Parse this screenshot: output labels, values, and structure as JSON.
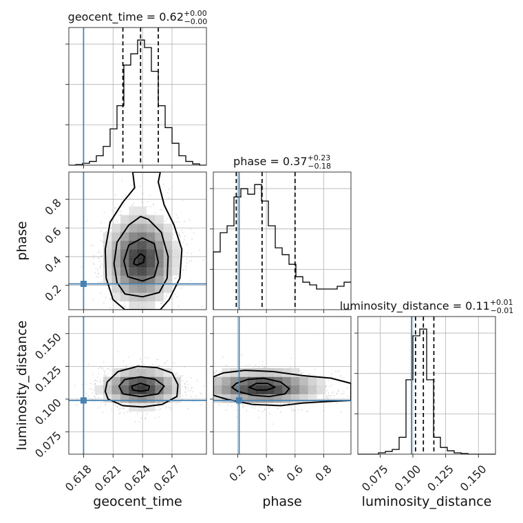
{
  "chart_data": {
    "type": "corner",
    "parameters": [
      "geocent_time",
      "phase",
      "luminosity_distance"
    ],
    "truths": {
      "geocent_time": 0.618,
      "phase": 0.21,
      "luminosity_distance": 0.099
    },
    "axes": {
      "geocent_time": {
        "label": "geocent_time",
        "range": [
          0.6165,
          0.6305
        ],
        "ticks": [
          0.618,
          0.621,
          0.624,
          0.627
        ],
        "tick_labels": [
          "0.618",
          "0.621",
          "0.624",
          "0.627"
        ]
      },
      "phase": {
        "label": "phase",
        "range": [
          0.03,
          0.99
        ],
        "ticks": [
          0.2,
          0.4,
          0.6,
          0.8
        ],
        "tick_labels": [
          "0.2",
          "0.4",
          "0.6",
          "0.8"
        ]
      },
      "luminosity_distance": {
        "label": "luminosity_distance",
        "range": [
          0.058,
          0.163
        ],
        "ticks": [
          0.075,
          0.1,
          0.125,
          0.15
        ],
        "tick_labels": [
          "0.075",
          "0.100",
          "0.125",
          "0.150"
        ]
      }
    },
    "titles": [
      {
        "param": "geocent_time",
        "prefix": "geocent_time = 0.62",
        "sup": "+0.00",
        "sub": "−0.00"
      },
      {
        "param": "phase",
        "prefix": "phase = 0.37",
        "sup": "+0.23",
        "sub": "−0.18"
      },
      {
        "param": "luminosity_distance",
        "prefix": "luminosity_distance = 0.11",
        "sup": "+0.01",
        "sub": "−0.01"
      }
    ],
    "histograms": {
      "geocent_time": {
        "edges_start": 0.6165,
        "bin_width": 0.0007,
        "counts": [
          0,
          1,
          3,
          6,
          15,
          30,
          58,
          95,
          160,
          178,
          200,
          188,
          150,
          95,
          60,
          35,
          15,
          6,
          2,
          0
        ],
        "quantiles": [
          0.622,
          0.6238,
          0.6256
        ]
      },
      "phase": {
        "edges_start": 0.03,
        "bin_width": 0.048,
        "counts": [
          42,
          56,
          61,
          82,
          88,
          84,
          91,
          79,
          61,
          45,
          40,
          33,
          24,
          20,
          18,
          15,
          15,
          15,
          17,
          20
        ],
        "quantiles": [
          0.19,
          0.37,
          0.6
        ]
      },
      "luminosity_distance": {
        "edges_start": 0.058,
        "bin_width": 0.00525,
        "counts": [
          0,
          0,
          0,
          2,
          4,
          7,
          25,
          110,
          175,
          185,
          110,
          25,
          10,
          5,
          2,
          1,
          0,
          0,
          0,
          0
        ],
        "quantiles": [
          0.102,
          0.108,
          0.116
        ]
      }
    },
    "contours_2d": [
      {
        "x": "geocent_time",
        "y": "phase",
        "levels": [
          [
            [
              0.6234,
              0.34
            ],
            [
              0.6241,
              0.36
            ],
            [
              0.6242,
              0.4
            ],
            [
              0.6238,
              0.42
            ],
            [
              0.6232,
              0.38
            ],
            [
              0.6231,
              0.35
            ]
          ],
          [
            [
              0.6225,
              0.26
            ],
            [
              0.624,
              0.23
            ],
            [
              0.6252,
              0.26
            ],
            [
              0.6256,
              0.36
            ],
            [
              0.6252,
              0.49
            ],
            [
              0.624,
              0.53
            ],
            [
              0.6226,
              0.48
            ],
            [
              0.6221,
              0.37
            ]
          ],
          [
            [
              0.6222,
              0.14
            ],
            [
              0.624,
              0.12
            ],
            [
              0.6257,
              0.15
            ],
            [
              0.6265,
              0.25
            ],
            [
              0.6266,
              0.4
            ],
            [
              0.6259,
              0.57
            ],
            [
              0.6246,
              0.66
            ],
            [
              0.6238,
              0.68
            ],
            [
              0.6226,
              0.62
            ],
            [
              0.6214,
              0.5
            ],
            [
              0.6211,
              0.35
            ],
            [
              0.6214,
              0.22
            ]
          ],
          [
            [
              0.6222,
              0.03
            ],
            [
              0.6258,
              0.03
            ],
            [
              0.6267,
              0.1
            ],
            [
              0.6278,
              0.25
            ],
            [
              0.628,
              0.45
            ],
            [
              0.6272,
              0.62
            ],
            [
              0.6262,
              0.76
            ],
            [
              0.6256,
              0.92
            ],
            [
              0.6258,
              0.99
            ],
            [
              0.623,
              0.99
            ],
            [
              0.6232,
              0.88
            ],
            [
              0.622,
              0.78
            ],
            [
              0.6207,
              0.64
            ],
            [
              0.6202,
              0.45
            ],
            [
              0.6203,
              0.25
            ],
            [
              0.621,
              0.1
            ]
          ]
        ]
      },
      {
        "x": "geocent_time",
        "y": "luminosity_distance",
        "levels": [
          [
            [
              0.623,
              0.107
            ],
            [
              0.6238,
              0.106
            ],
            [
              0.6246,
              0.107
            ],
            [
              0.6247,
              0.11
            ],
            [
              0.6238,
              0.112
            ],
            [
              0.6229,
              0.11
            ]
          ],
          [
            [
              0.622,
              0.104
            ],
            [
              0.6238,
              0.102
            ],
            [
              0.6256,
              0.104
            ],
            [
              0.6262,
              0.11
            ],
            [
              0.6253,
              0.115
            ],
            [
              0.6238,
              0.117
            ],
            [
              0.6222,
              0.115
            ],
            [
              0.6216,
              0.11
            ]
          ],
          [
            [
              0.6205,
              0.1
            ],
            [
              0.622,
              0.095
            ],
            [
              0.624,
              0.094
            ],
            [
              0.626,
              0.096
            ],
            [
              0.6275,
              0.102
            ],
            [
              0.6276,
              0.111
            ],
            [
              0.627,
              0.12
            ],
            [
              0.6255,
              0.124
            ],
            [
              0.6235,
              0.125
            ],
            [
              0.6215,
              0.121
            ],
            [
              0.6204,
              0.113
            ],
            [
              0.6202,
              0.106
            ]
          ]
        ]
      },
      {
        "x": "phase",
        "y": "luminosity_distance",
        "levels": [
          [
            [
              0.28,
              0.109
            ],
            [
              0.33,
              0.107
            ],
            [
              0.4,
              0.107
            ],
            [
              0.46,
              0.109
            ],
            [
              0.41,
              0.112
            ],
            [
              0.33,
              0.112
            ]
          ],
          [
            [
              0.2,
              0.106
            ],
            [
              0.3,
              0.103
            ],
            [
              0.42,
              0.102
            ],
            [
              0.53,
              0.104
            ],
            [
              0.56,
              0.108
            ],
            [
              0.5,
              0.113
            ],
            [
              0.38,
              0.116
            ],
            [
              0.27,
              0.115
            ],
            [
              0.19,
              0.112
            ],
            [
              0.16,
              0.109
            ]
          ],
          [
            [
              0.03,
              0.103
            ],
            [
              0.12,
              0.1
            ],
            [
              0.3,
              0.096
            ],
            [
              0.5,
              0.095
            ],
            [
              0.65,
              0.097
            ],
            [
              0.8,
              0.098
            ],
            [
              0.99,
              0.099
            ],
            [
              0.99,
              0.112
            ],
            [
              0.85,
              0.116
            ],
            [
              0.65,
              0.118
            ],
            [
              0.45,
              0.121
            ],
            [
              0.25,
              0.122
            ],
            [
              0.1,
              0.12
            ],
            [
              0.03,
              0.117
            ]
          ]
        ]
      }
    ],
    "density_peaks_2d": [
      {
        "x": "geocent_time",
        "y": "phase",
        "cx": 0.6238,
        "cy": 0.38,
        "sx": 0.0019,
        "sy": 0.17
      },
      {
        "x": "geocent_time",
        "y": "luminosity_distance",
        "cx": 0.6238,
        "cy": 0.109,
        "sx": 0.0021,
        "sy": 0.0075
      },
      {
        "x": "phase",
        "y": "luminosity_distance",
        "cx": 0.37,
        "cy": 0.109,
        "sx": 0.22,
        "sy": 0.007
      }
    ],
    "grid": true
  }
}
